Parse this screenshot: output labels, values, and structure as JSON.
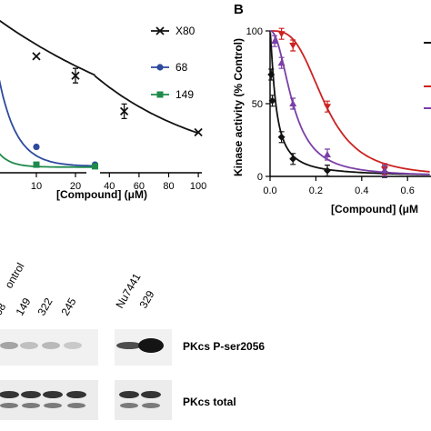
{
  "chart_data": [
    {
      "panel": "",
      "type": "line",
      "xlabel": "[Compound] (μM)",
      "ylabel": "",
      "x_ticks_left": [
        10,
        20
      ],
      "x_ticks_right": [
        40,
        60,
        80,
        100
      ],
      "axis_break": true,
      "series": [
        {
          "name": "X80",
          "color": "#111111",
          "marker": "x",
          "points": [
            {
              "x": 10,
              "y": 72
            },
            {
              "x": 20,
              "y": 60
            },
            {
              "x": 50,
              "y": 38
            },
            {
              "x": 100,
              "y": 25
            }
          ]
        },
        {
          "name": "68",
          "color": "#2e4a9e",
          "marker": "circle",
          "points": [
            {
              "x": 10,
              "y": 16
            },
            {
              "x": 25,
              "y": 5
            }
          ]
        },
        {
          "name": "149",
          "color": "#1f8a4c",
          "marker": "square",
          "points": [
            {
              "x": 10,
              "y": 5
            },
            {
              "x": 25,
              "y": 4
            }
          ]
        }
      ]
    },
    {
      "panel": "B",
      "type": "line",
      "xlabel": "[Compound] (μM",
      "ylabel": "Kinase activity (% Control)",
      "xlim": [
        0,
        0.7
      ],
      "ylim": [
        0,
        100
      ],
      "x_ticks": [
        "0.0",
        "0.2",
        "0.4",
        "0.6"
      ],
      "y_ticks": [
        "0",
        "50",
        "100"
      ],
      "series": [
        {
          "color": "#111111",
          "marker": "diamond",
          "points": [
            {
              "x": 0.005,
              "y": 70
            },
            {
              "x": 0.01,
              "y": 52
            },
            {
              "x": 0.05,
              "y": 27
            },
            {
              "x": 0.1,
              "y": 12
            },
            {
              "x": 0.25,
              "y": 4
            },
            {
              "x": 0.5,
              "y": 3
            }
          ]
        },
        {
          "color": "#cc2222",
          "marker": "triangle-down",
          "points": [
            {
              "x": 0.05,
              "y": 98
            },
            {
              "x": 0.1,
              "y": 90
            },
            {
              "x": 0.25,
              "y": 48
            },
            {
              "x": 0.5,
              "y": 5
            }
          ]
        },
        {
          "color": "#7a3fa8",
          "marker": "triangle-up",
          "points": [
            {
              "x": 0.02,
              "y": 93
            },
            {
              "x": 0.05,
              "y": 78
            },
            {
              "x": 0.1,
              "y": 50
            },
            {
              "x": 0.25,
              "y": 15
            },
            {
              "x": 0.5,
              "y": 4
            }
          ]
        }
      ]
    }
  ],
  "blot": {
    "header": "ontrol",
    "lanes": [
      "68",
      "149",
      "322",
      "245",
      "Nu7441",
      "329"
    ],
    "rows": [
      {
        "label": "PKcs P-ser2056"
      },
      {
        "label": "PKcs total"
      }
    ]
  }
}
